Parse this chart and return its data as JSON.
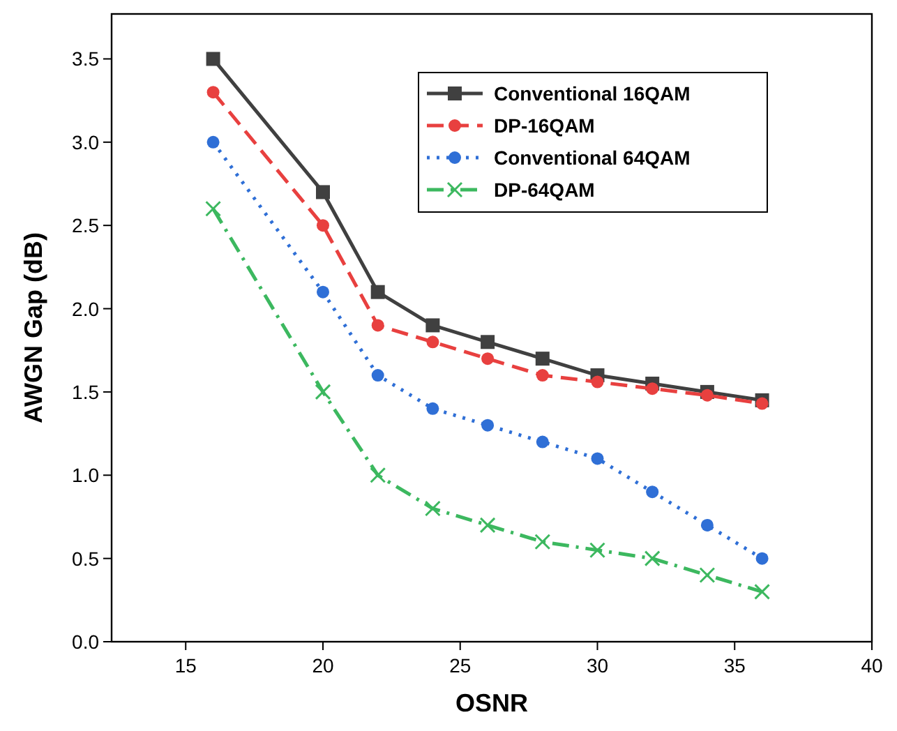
{
  "chart_data": {
    "type": "line",
    "xlabel": "OSNR",
    "ylabel": "AWGN Gap (dB)",
    "x": [
      16,
      20,
      22,
      24,
      26,
      28,
      30,
      32,
      34,
      36
    ],
    "xlim": [
      12.3,
      40
    ],
    "xticks": [
      15,
      20,
      25,
      30,
      35,
      40
    ],
    "ylim": [
      0,
      3.77
    ],
    "yticks": [
      {
        "value": 0,
        "label": "0.0"
      },
      0.5,
      {
        "value": 1,
        "label": "1.0"
      },
      1.5,
      {
        "value": 2,
        "label": "2.0"
      },
      2.5,
      {
        "value": 3,
        "label": "3.0"
      },
      3.5
    ],
    "legend": "top right",
    "grid": false,
    "series": [
      {
        "name": "Conventional 16QAM",
        "color": "#404040",
        "marker": "square",
        "line_style": "solid",
        "values": [
          3.5,
          2.7,
          2.1,
          1.9,
          1.8,
          1.7,
          1.6,
          1.55,
          1.5,
          1.45
        ]
      },
      {
        "name": "DP-16QAM",
        "color": "#e8403f",
        "marker": "circle",
        "line_style": "dashed",
        "values": [
          3.3,
          2.5,
          1.9,
          1.8,
          1.7,
          1.6,
          1.56,
          1.52,
          1.48,
          1.43
        ]
      },
      {
        "name": "Conventional 64QAM",
        "color": "#2f6fd6",
        "marker": "circle",
        "line_style": "dotted",
        "values": [
          3.0,
          2.1,
          1.6,
          1.4,
          1.3,
          1.2,
          1.1,
          0.9,
          0.7,
          0.5
        ]
      },
      {
        "name": "DP-64QAM",
        "color": "#3cb85f",
        "marker": "cross",
        "line_style": "dashdot",
        "values": [
          2.6,
          1.5,
          1.0,
          0.8,
          0.7,
          0.6,
          0.55,
          0.5,
          0.4,
          0.3
        ]
      }
    ]
  }
}
